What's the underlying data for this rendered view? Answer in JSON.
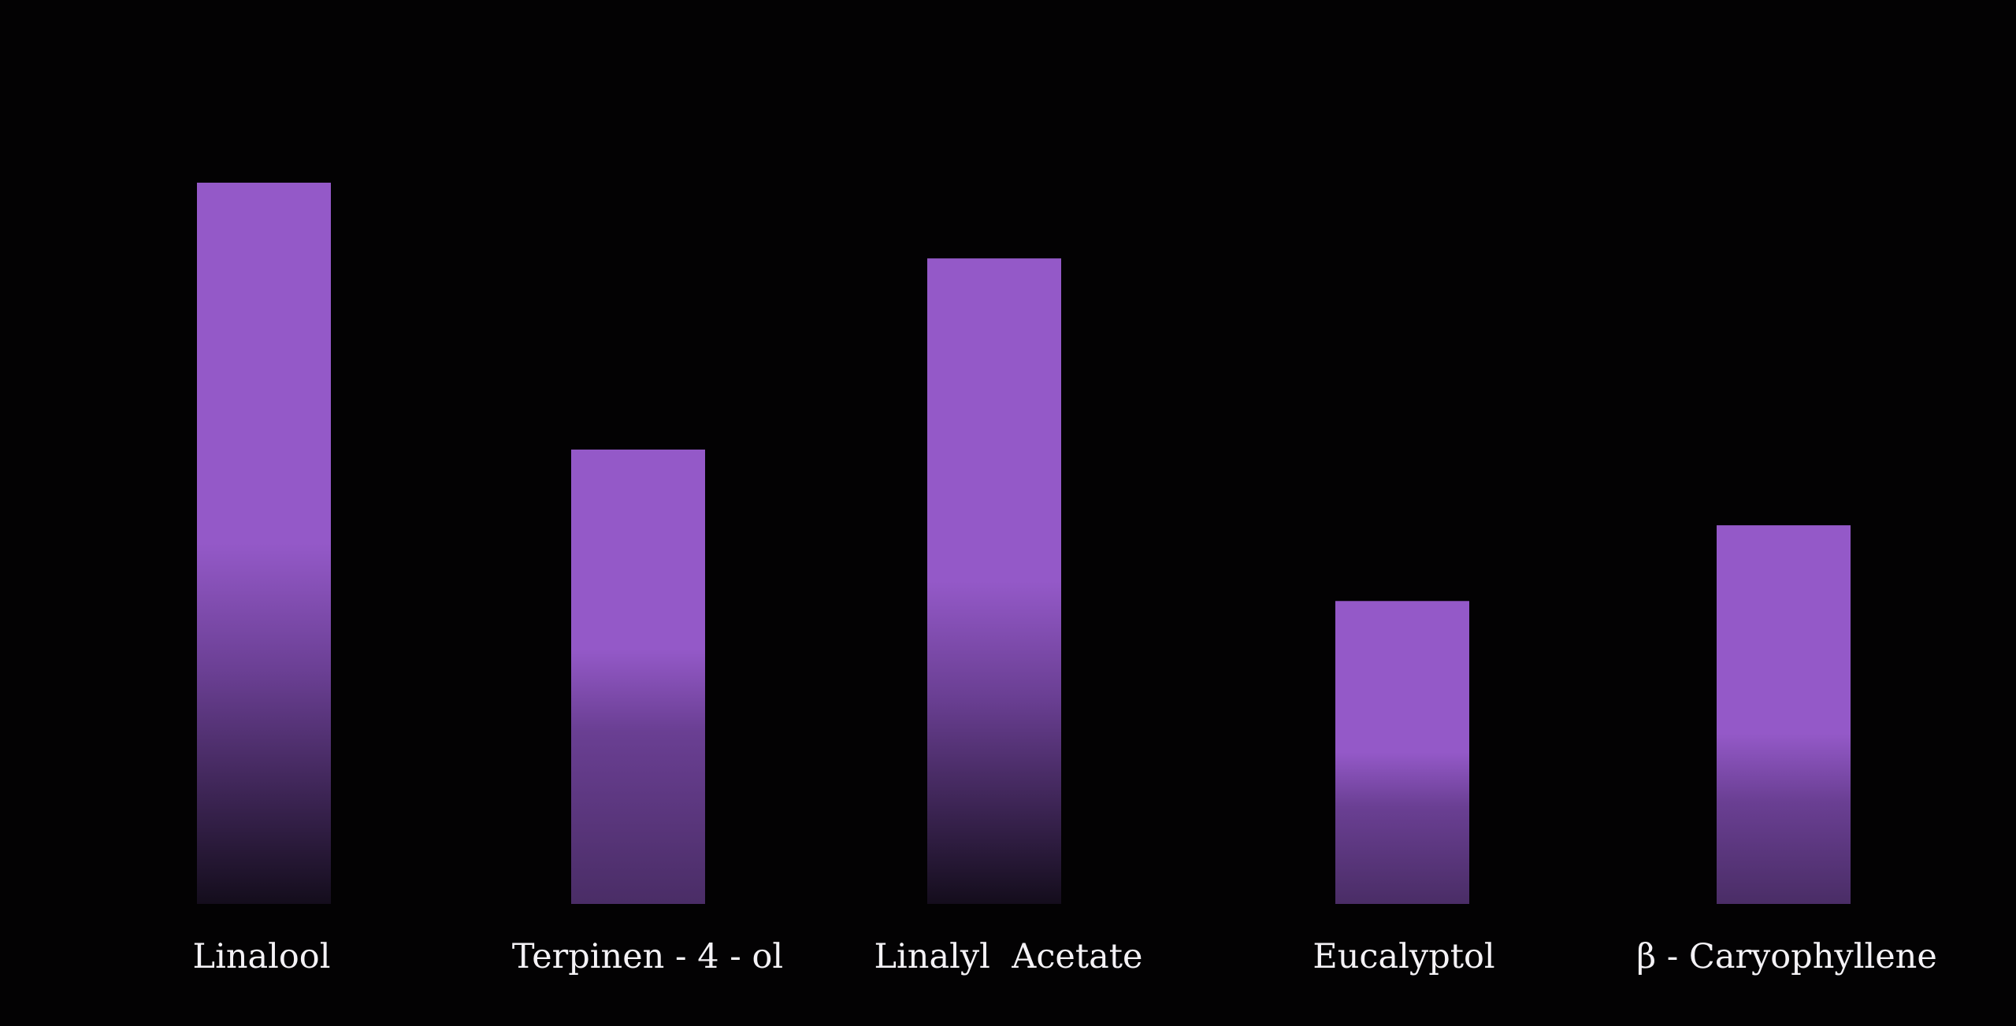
{
  "colors": {
    "background": "#030203",
    "bar": "#9459c8",
    "bar_fade": "#140d1c",
    "label": "#f4f2f6"
  },
  "chart_data": {
    "type": "bar",
    "title": "",
    "xlabel": "",
    "ylabel": "",
    "ylim": [
      0,
      100
    ],
    "grid": false,
    "axes_visible": false,
    "bar_style": "vertical gradient, solid purple at top fading to dark at bottom",
    "categories": [
      "Linalool",
      "Terpinen - 4 - ol",
      "Linalyl  Acetate",
      "Eucalyptol",
      "β - Caryophyllene"
    ],
    "values": [
      100,
      63,
      89.5,
      42,
      52.5
    ]
  }
}
